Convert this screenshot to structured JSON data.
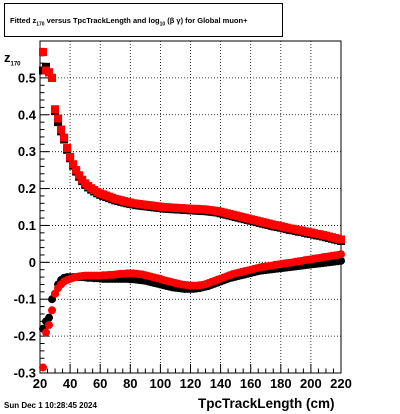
{
  "chart_data": {
    "type": "scatter",
    "title": "Fitted  z_170  versus TpcTrackLength and log_10 (β γ) for Global muon+",
    "title_parts": {
      "pre": "Fitted  z",
      "sub1": "170",
      "mid": "  versus TpcTrackLength and log",
      "sub2": "10",
      "post": " (β  γ) for Global muon+"
    },
    "xlabel": "TpcTrackLength (cm)",
    "ylabel": "z",
    "ylabel_sub": "170",
    "xlim": [
      20,
      220
    ],
    "ylim": [
      -0.3,
      0.6
    ],
    "xticks": [
      20,
      40,
      60,
      80,
      100,
      120,
      140,
      160,
      180,
      200,
      220
    ],
    "yticks": [
      -0.3,
      -0.2,
      -0.1,
      0,
      0.1,
      0.2,
      0.3,
      0.4,
      0.5
    ],
    "ytick_labels": [
      "-0.3",
      "-0.2",
      "-0.1",
      "0",
      "0.1",
      "0.2",
      "0.3",
      "0.4",
      "0.5"
    ],
    "grid": true,
    "footer": "Sun Dec  1 10:28:45 2024",
    "colors": {
      "red": "#ff0000",
      "black": "#000000"
    },
    "series": [
      {
        "marker": "square",
        "color": "#000000",
        "x": [
          22,
          24,
          26,
          28,
          30,
          32,
          34,
          36,
          38,
          40,
          42,
          44,
          46,
          48,
          50,
          52,
          54,
          56,
          58,
          60,
          62,
          64,
          66,
          68,
          70,
          72,
          74,
          76,
          78,
          80,
          82,
          84,
          86,
          88,
          90,
          92,
          94,
          96,
          98,
          100,
          102,
          104,
          106,
          108,
          110,
          112,
          114,
          116,
          118,
          120,
          122,
          124,
          126,
          128,
          130,
          132,
          134,
          136,
          138,
          140,
          142,
          144,
          146,
          148,
          150,
          152,
          154,
          156,
          158,
          160,
          162,
          164,
          166,
          168,
          170,
          172,
          174,
          176,
          178,
          180,
          182,
          184,
          186,
          188,
          190,
          192,
          194,
          196,
          198,
          200,
          202,
          204,
          206,
          208,
          210,
          212,
          214,
          216,
          218,
          220
        ],
        "y": [
          0.52,
          0.53,
          0.515,
          0.5,
          0.41,
          0.38,
          0.355,
          0.333,
          0.305,
          0.282,
          0.262,
          0.246,
          0.232,
          0.22,
          0.21,
          0.203,
          0.197,
          0.192,
          0.187,
          0.183,
          0.18,
          0.177,
          0.174,
          0.171,
          0.168,
          0.166,
          0.164,
          0.162,
          0.16,
          0.158,
          0.157,
          0.155,
          0.154,
          0.153,
          0.152,
          0.151,
          0.15,
          0.149,
          0.148,
          0.147,
          0.146,
          0.145,
          0.145,
          0.144,
          0.144,
          0.143,
          0.143,
          0.142,
          0.142,
          0.141,
          0.141,
          0.14,
          0.14,
          0.139,
          0.139,
          0.138,
          0.137,
          0.136,
          0.135,
          0.133,
          0.131,
          0.129,
          0.127,
          0.125,
          0.123,
          0.121,
          0.119,
          0.117,
          0.115,
          0.113,
          0.111,
          0.109,
          0.107,
          0.105,
          0.103,
          0.101,
          0.099,
          0.097,
          0.096,
          0.094,
          0.092,
          0.09,
          0.088,
          0.087,
          0.085,
          0.083,
          0.082,
          0.08,
          0.078,
          0.077,
          0.075,
          0.073,
          0.072,
          0.07,
          0.068,
          0.066,
          0.064,
          0.062,
          0.06,
          0.058
        ]
      },
      {
        "marker": "square",
        "color": "#ff0000",
        "x": [
          22,
          24,
          26,
          28,
          30,
          32,
          34,
          36,
          38,
          40,
          42,
          44,
          46,
          48,
          50,
          52,
          54,
          56,
          58,
          60,
          62,
          64,
          66,
          68,
          70,
          72,
          74,
          76,
          78,
          80,
          82,
          84,
          86,
          88,
          90,
          92,
          94,
          96,
          98,
          100,
          102,
          104,
          106,
          108,
          110,
          112,
          114,
          116,
          118,
          120,
          122,
          124,
          126,
          128,
          130,
          132,
          134,
          136,
          138,
          140,
          142,
          144,
          146,
          148,
          150,
          152,
          154,
          156,
          158,
          160,
          162,
          164,
          166,
          168,
          170,
          172,
          174,
          176,
          178,
          180,
          182,
          184,
          186,
          188,
          190,
          192,
          194,
          196,
          198,
          200,
          202,
          204,
          206,
          208,
          210,
          212,
          214,
          216,
          218,
          220
        ],
        "y": [
          0.57,
          0.52,
          0.515,
          0.5,
          0.415,
          0.39,
          0.36,
          0.338,
          0.31,
          0.286,
          0.266,
          0.25,
          0.236,
          0.224,
          0.214,
          0.207,
          0.201,
          0.196,
          0.191,
          0.187,
          0.184,
          0.181,
          0.178,
          0.175,
          0.172,
          0.17,
          0.168,
          0.166,
          0.164,
          0.162,
          0.16,
          0.159,
          0.158,
          0.157,
          0.156,
          0.155,
          0.154,
          0.153,
          0.152,
          0.151,
          0.15,
          0.149,
          0.149,
          0.148,
          0.148,
          0.147,
          0.147,
          0.146,
          0.146,
          0.145,
          0.145,
          0.145,
          0.144,
          0.144,
          0.143,
          0.142,
          0.141,
          0.14,
          0.139,
          0.137,
          0.135,
          0.133,
          0.131,
          0.129,
          0.127,
          0.125,
          0.123,
          0.121,
          0.119,
          0.117,
          0.115,
          0.113,
          0.111,
          0.109,
          0.107,
          0.105,
          0.103,
          0.101,
          0.1,
          0.098,
          0.096,
          0.094,
          0.092,
          0.091,
          0.089,
          0.087,
          0.086,
          0.084,
          0.082,
          0.081,
          0.079,
          0.077,
          0.076,
          0.074,
          0.072,
          0.07,
          0.068,
          0.066,
          0.064,
          0.062
        ]
      },
      {
        "marker": "circle",
        "color": "#000000",
        "x": [
          22,
          24,
          26,
          28,
          30,
          32,
          34,
          36,
          38,
          40,
          42,
          44,
          46,
          48,
          50,
          52,
          54,
          56,
          58,
          60,
          62,
          64,
          66,
          68,
          70,
          72,
          74,
          76,
          78,
          80,
          82,
          84,
          86,
          88,
          90,
          92,
          94,
          96,
          98,
          100,
          102,
          104,
          106,
          108,
          110,
          112,
          114,
          116,
          118,
          120,
          122,
          124,
          126,
          128,
          130,
          132,
          134,
          136,
          138,
          140,
          142,
          144,
          146,
          148,
          150,
          152,
          154,
          156,
          158,
          160,
          162,
          164,
          166,
          168,
          170,
          172,
          174,
          176,
          178,
          180,
          182,
          184,
          186,
          188,
          190,
          192,
          194,
          196,
          198,
          200,
          202,
          204,
          206,
          208,
          210,
          212,
          214,
          216,
          218,
          220
        ],
        "y": [
          -0.18,
          -0.16,
          -0.15,
          -0.1,
          -0.085,
          -0.06,
          -0.048,
          -0.042,
          -0.04,
          -0.04,
          -0.04,
          -0.04,
          -0.04,
          -0.04,
          -0.041,
          -0.042,
          -0.042,
          -0.043,
          -0.043,
          -0.044,
          -0.045,
          -0.045,
          -0.045,
          -0.045,
          -0.045,
          -0.045,
          -0.045,
          -0.045,
          -0.045,
          -0.046,
          -0.046,
          -0.047,
          -0.048,
          -0.049,
          -0.05,
          -0.052,
          -0.054,
          -0.056,
          -0.058,
          -0.06,
          -0.062,
          -0.064,
          -0.066,
          -0.068,
          -0.069,
          -0.07,
          -0.071,
          -0.072,
          -0.072,
          -0.072,
          -0.072,
          -0.071,
          -0.07,
          -0.068,
          -0.066,
          -0.064,
          -0.061,
          -0.058,
          -0.055,
          -0.052,
          -0.049,
          -0.046,
          -0.043,
          -0.041,
          -0.039,
          -0.037,
          -0.035,
          -0.033,
          -0.031,
          -0.029,
          -0.027,
          -0.025,
          -0.023,
          -0.022,
          -0.021,
          -0.02,
          -0.019,
          -0.018,
          -0.017,
          -0.016,
          -0.015,
          -0.014,
          -0.013,
          -0.012,
          -0.011,
          -0.01,
          -0.009,
          -0.008,
          -0.007,
          -0.006,
          -0.005,
          -0.004,
          -0.003,
          -0.002,
          -0.001,
          0.0,
          0.001,
          0.002,
          0.003,
          0.004
        ]
      },
      {
        "marker": "circle",
        "color": "#ff0000",
        "x": [
          22,
          24,
          26,
          28,
          30,
          32,
          34,
          36,
          38,
          40,
          42,
          44,
          46,
          48,
          50,
          52,
          54,
          56,
          58,
          60,
          62,
          64,
          66,
          68,
          70,
          72,
          74,
          76,
          78,
          80,
          82,
          84,
          86,
          88,
          90,
          92,
          94,
          96,
          98,
          100,
          102,
          104,
          106,
          108,
          110,
          112,
          114,
          116,
          118,
          120,
          122,
          124,
          126,
          128,
          130,
          132,
          134,
          136,
          138,
          140,
          142,
          144,
          146,
          148,
          150,
          152,
          154,
          156,
          158,
          160,
          162,
          164,
          166,
          168,
          170,
          172,
          174,
          176,
          178,
          180,
          182,
          184,
          186,
          188,
          190,
          192,
          194,
          196,
          198,
          200,
          202,
          204,
          206,
          208,
          210,
          212,
          214,
          216,
          218,
          220
        ],
        "y": [
          -0.285,
          -0.19,
          -0.17,
          -0.13,
          -0.085,
          -0.07,
          -0.06,
          -0.052,
          -0.048,
          -0.045,
          -0.042,
          -0.04,
          -0.038,
          -0.037,
          -0.036,
          -0.036,
          -0.036,
          -0.036,
          -0.036,
          -0.036,
          -0.035,
          -0.035,
          -0.034,
          -0.034,
          -0.033,
          -0.032,
          -0.031,
          -0.031,
          -0.03,
          -0.03,
          -0.03,
          -0.031,
          -0.032,
          -0.033,
          -0.035,
          -0.037,
          -0.039,
          -0.041,
          -0.043,
          -0.045,
          -0.048,
          -0.05,
          -0.052,
          -0.054,
          -0.056,
          -0.058,
          -0.06,
          -0.061,
          -0.062,
          -0.063,
          -0.063,
          -0.063,
          -0.062,
          -0.061,
          -0.059,
          -0.056,
          -0.053,
          -0.05,
          -0.047,
          -0.044,
          -0.041,
          -0.038,
          -0.035,
          -0.032,
          -0.03,
          -0.028,
          -0.026,
          -0.024,
          -0.022,
          -0.02,
          -0.018,
          -0.016,
          -0.014,
          -0.012,
          -0.011,
          -0.01,
          -0.009,
          -0.007,
          -0.006,
          -0.005,
          -0.003,
          -0.002,
          -0.001,
          0.0,
          0.002,
          0.003,
          0.004,
          0.006,
          0.007,
          0.008,
          0.01,
          0.011,
          0.012,
          0.014,
          0.015,
          0.016,
          0.018,
          0.019,
          0.02,
          0.022
        ]
      }
    ]
  }
}
